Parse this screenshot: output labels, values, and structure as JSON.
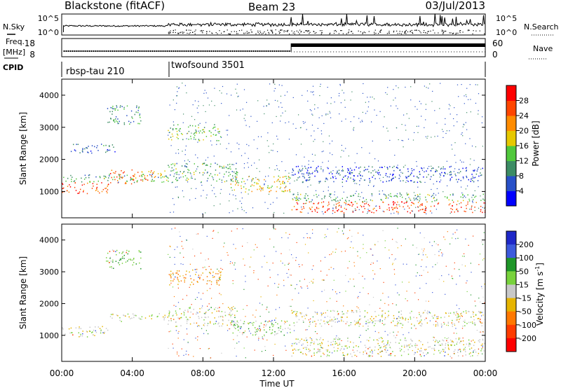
{
  "header": {
    "station": "Blackstone (fitACF)",
    "beam": "Beam 23",
    "date": "03/Jul/2013"
  },
  "strip_labels": {
    "nsky": "N.Sky",
    "nsearch": "N.Search",
    "freq_line1": "Freq.",
    "freq_line2": "[MHz]",
    "nave": "Nave",
    "cpid": "CPID"
  },
  "strip_ticks": {
    "noise_top": "10^5",
    "noise_bottom": "10^0",
    "freq_top": "18",
    "freq_bottom": "8",
    "nave_top": "60",
    "nave_bottom": "0"
  },
  "cpid_segments": [
    {
      "start_hour": 0,
      "end_hour": 6,
      "label": "rbsp-tau 210"
    },
    {
      "start_hour": 6,
      "end_hour": 24,
      "label": "twofsound 3501"
    }
  ],
  "x_axis": {
    "label": "Time UT",
    "ticks": [
      "00:00",
      "04:00",
      "08:00",
      "12:00",
      "16:00",
      "20:00",
      "00:00"
    ],
    "tick_hours": [
      0,
      4,
      8,
      12,
      16,
      20,
      24
    ]
  },
  "power_colorbar": {
    "label": "Power [dB]",
    "ticks": [
      "4",
      "8",
      "12",
      "16",
      "20",
      "24",
      "28"
    ],
    "colors": [
      "#0000ff",
      "#2850c8",
      "#3c8c64",
      "#50c83c",
      "#e6c800",
      "#ff8c00",
      "#ff4600",
      "#ff0000"
    ]
  },
  "velocity_colorbar": {
    "label_main": "Velocity [m s",
    "label_sup": "-1",
    "label_end": "]",
    "ticks": [
      "200",
      "100",
      "50",
      "15",
      "-15",
      "-50",
      "-100",
      "-200"
    ],
    "colors": [
      "#1e28c8",
      "#3c5adc",
      "#1e9628",
      "#78d23c",
      "#c8c8c8",
      "#e6b400",
      "#ff7800",
      "#ff3c00",
      "#ff0000"
    ]
  },
  "chart_data": [
    {
      "type": "heatmap",
      "ylabel": "Slant Range [km]",
      "xlabel": "Time UT",
      "xlim": [
        0,
        24
      ],
      "ylim": [
        180,
        4500
      ],
      "yticks": [
        "1000",
        "2000",
        "3000",
        "4000"
      ],
      "ytick_values": [
        1000,
        2000,
        3000,
        4000
      ],
      "colorbar": "Power [dB]",
      "regions": [
        {
          "t0": 0.0,
          "t1": 2.7,
          "r0": 950,
          "r1": 1300,
          "value": 26
        },
        {
          "t0": 2.7,
          "t1": 5.2,
          "r0": 1250,
          "r1": 1700,
          "value": 24
        },
        {
          "t0": 5.2,
          "t1": 6.0,
          "r0": 1450,
          "r1": 1700,
          "value": 18
        },
        {
          "t0": 0.0,
          "t1": 6.0,
          "r0": 1300,
          "r1": 1550,
          "value": 12
        },
        {
          "t0": 6.0,
          "t1": 10.0,
          "r0": 1300,
          "r1": 1900,
          "value": 12
        },
        {
          "t0": 9.5,
          "t1": 13.0,
          "r0": 1000,
          "r1": 1500,
          "value": 18
        },
        {
          "t0": 6.0,
          "t1": 9.0,
          "r0": 2600,
          "r1": 3100,
          "value": 14
        },
        {
          "t0": 2.5,
          "t1": 4.5,
          "r0": 3100,
          "r1": 3700,
          "value": 10
        },
        {
          "t0": 0.5,
          "t1": 3.0,
          "r0": 2200,
          "r1": 2500,
          "value": 8
        },
        {
          "t0": 13.0,
          "t1": 24.0,
          "r0": 350,
          "r1": 700,
          "value": 27
        },
        {
          "t0": 13.0,
          "t1": 24.0,
          "r0": 700,
          "r1": 950,
          "value": 12
        },
        {
          "t0": 13.0,
          "t1": 24.0,
          "r0": 1300,
          "r1": 1800,
          "value": 6
        }
      ]
    },
    {
      "type": "heatmap",
      "ylabel": "Slant Range [km]",
      "xlabel": "Time UT",
      "xlim": [
        0,
        24
      ],
      "ylim": [
        180,
        4500
      ],
      "yticks": [
        "1000",
        "2000",
        "3000",
        "4000"
      ],
      "ytick_values": [
        1000,
        2000,
        3000,
        4000
      ],
      "colorbar": "Velocity [m s-1]",
      "regions": [
        {
          "t0": 0.0,
          "t1": 2.7,
          "r0": 950,
          "r1": 1300,
          "value": 0
        },
        {
          "t0": 2.7,
          "t1": 6.0,
          "r0": 1450,
          "r1": 1700,
          "value": 0
        },
        {
          "t0": 6.0,
          "t1": 9.0,
          "r0": 2600,
          "r1": 3100,
          "value": -60
        },
        {
          "t0": 2.5,
          "t1": 4.5,
          "r0": 3100,
          "r1": 3700,
          "value": 40
        },
        {
          "t0": 9.5,
          "t1": 13.0,
          "r0": 1000,
          "r1": 1500,
          "value": 30
        },
        {
          "t0": 6.0,
          "t1": 10.0,
          "r0": 1300,
          "r1": 1900,
          "value": 0
        },
        {
          "t0": 13.0,
          "t1": 24.0,
          "r0": 350,
          "r1": 950,
          "value": 0
        },
        {
          "t0": 13.0,
          "t1": 24.0,
          "r0": 1300,
          "r1": 1800,
          "value": 0
        }
      ]
    }
  ]
}
